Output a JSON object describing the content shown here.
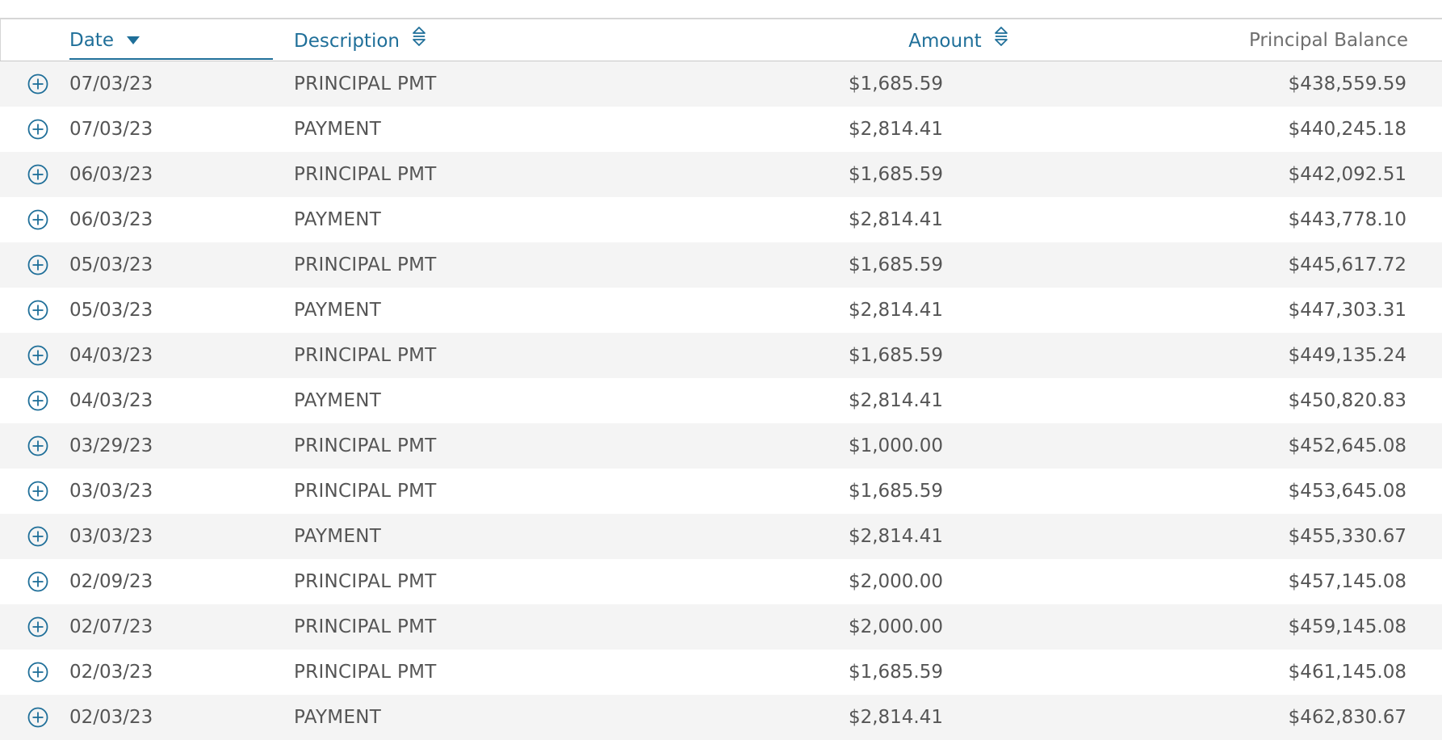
{
  "table": {
    "headers": {
      "date": "Date",
      "description": "Description",
      "amount": "Amount",
      "principal_balance": "Principal Balance"
    },
    "rows": [
      {
        "date": "07/03/23",
        "description": "PRINCIPAL PMT",
        "amount": "$1,685.59",
        "balance": "$438,559.59"
      },
      {
        "date": "07/03/23",
        "description": "PAYMENT",
        "amount": "$2,814.41",
        "balance": "$440,245.18"
      },
      {
        "date": "06/03/23",
        "description": "PRINCIPAL PMT",
        "amount": "$1,685.59",
        "balance": "$442,092.51"
      },
      {
        "date": "06/03/23",
        "description": "PAYMENT",
        "amount": "$2,814.41",
        "balance": "$443,778.10"
      },
      {
        "date": "05/03/23",
        "description": "PRINCIPAL PMT",
        "amount": "$1,685.59",
        "balance": "$445,617.72"
      },
      {
        "date": "05/03/23",
        "description": "PAYMENT",
        "amount": "$2,814.41",
        "balance": "$447,303.31"
      },
      {
        "date": "04/03/23",
        "description": "PRINCIPAL PMT",
        "amount": "$1,685.59",
        "balance": "$449,135.24"
      },
      {
        "date": "04/03/23",
        "description": "PAYMENT",
        "amount": "$2,814.41",
        "balance": "$450,820.83"
      },
      {
        "date": "03/29/23",
        "description": "PRINCIPAL PMT",
        "amount": "$1,000.00",
        "balance": "$452,645.08"
      },
      {
        "date": "03/03/23",
        "description": "PRINCIPAL PMT",
        "amount": "$1,685.59",
        "balance": "$453,645.08"
      },
      {
        "date": "03/03/23",
        "description": "PAYMENT",
        "amount": "$2,814.41",
        "balance": "$455,330.67"
      },
      {
        "date": "02/09/23",
        "description": "PRINCIPAL PMT",
        "amount": "$2,000.00",
        "balance": "$457,145.08"
      },
      {
        "date": "02/07/23",
        "description": "PRINCIPAL PMT",
        "amount": "$2,000.00",
        "balance": "$459,145.08"
      },
      {
        "date": "02/03/23",
        "description": "PRINCIPAL PMT",
        "amount": "$1,685.59",
        "balance": "$461,145.08"
      },
      {
        "date": "02/03/23",
        "description": "PAYMENT",
        "amount": "$2,814.41",
        "balance": "$462,830.67"
      }
    ]
  },
  "icons": {
    "expand": "plus-circle-icon",
    "sort_active": "caret-down-icon",
    "sort_inactive": "sort-up-down-icon"
  },
  "colors": {
    "accent": "#1f6f99",
    "text": "#555555",
    "row_alt": "#f4f4f4",
    "border": "#d6d6d6"
  }
}
